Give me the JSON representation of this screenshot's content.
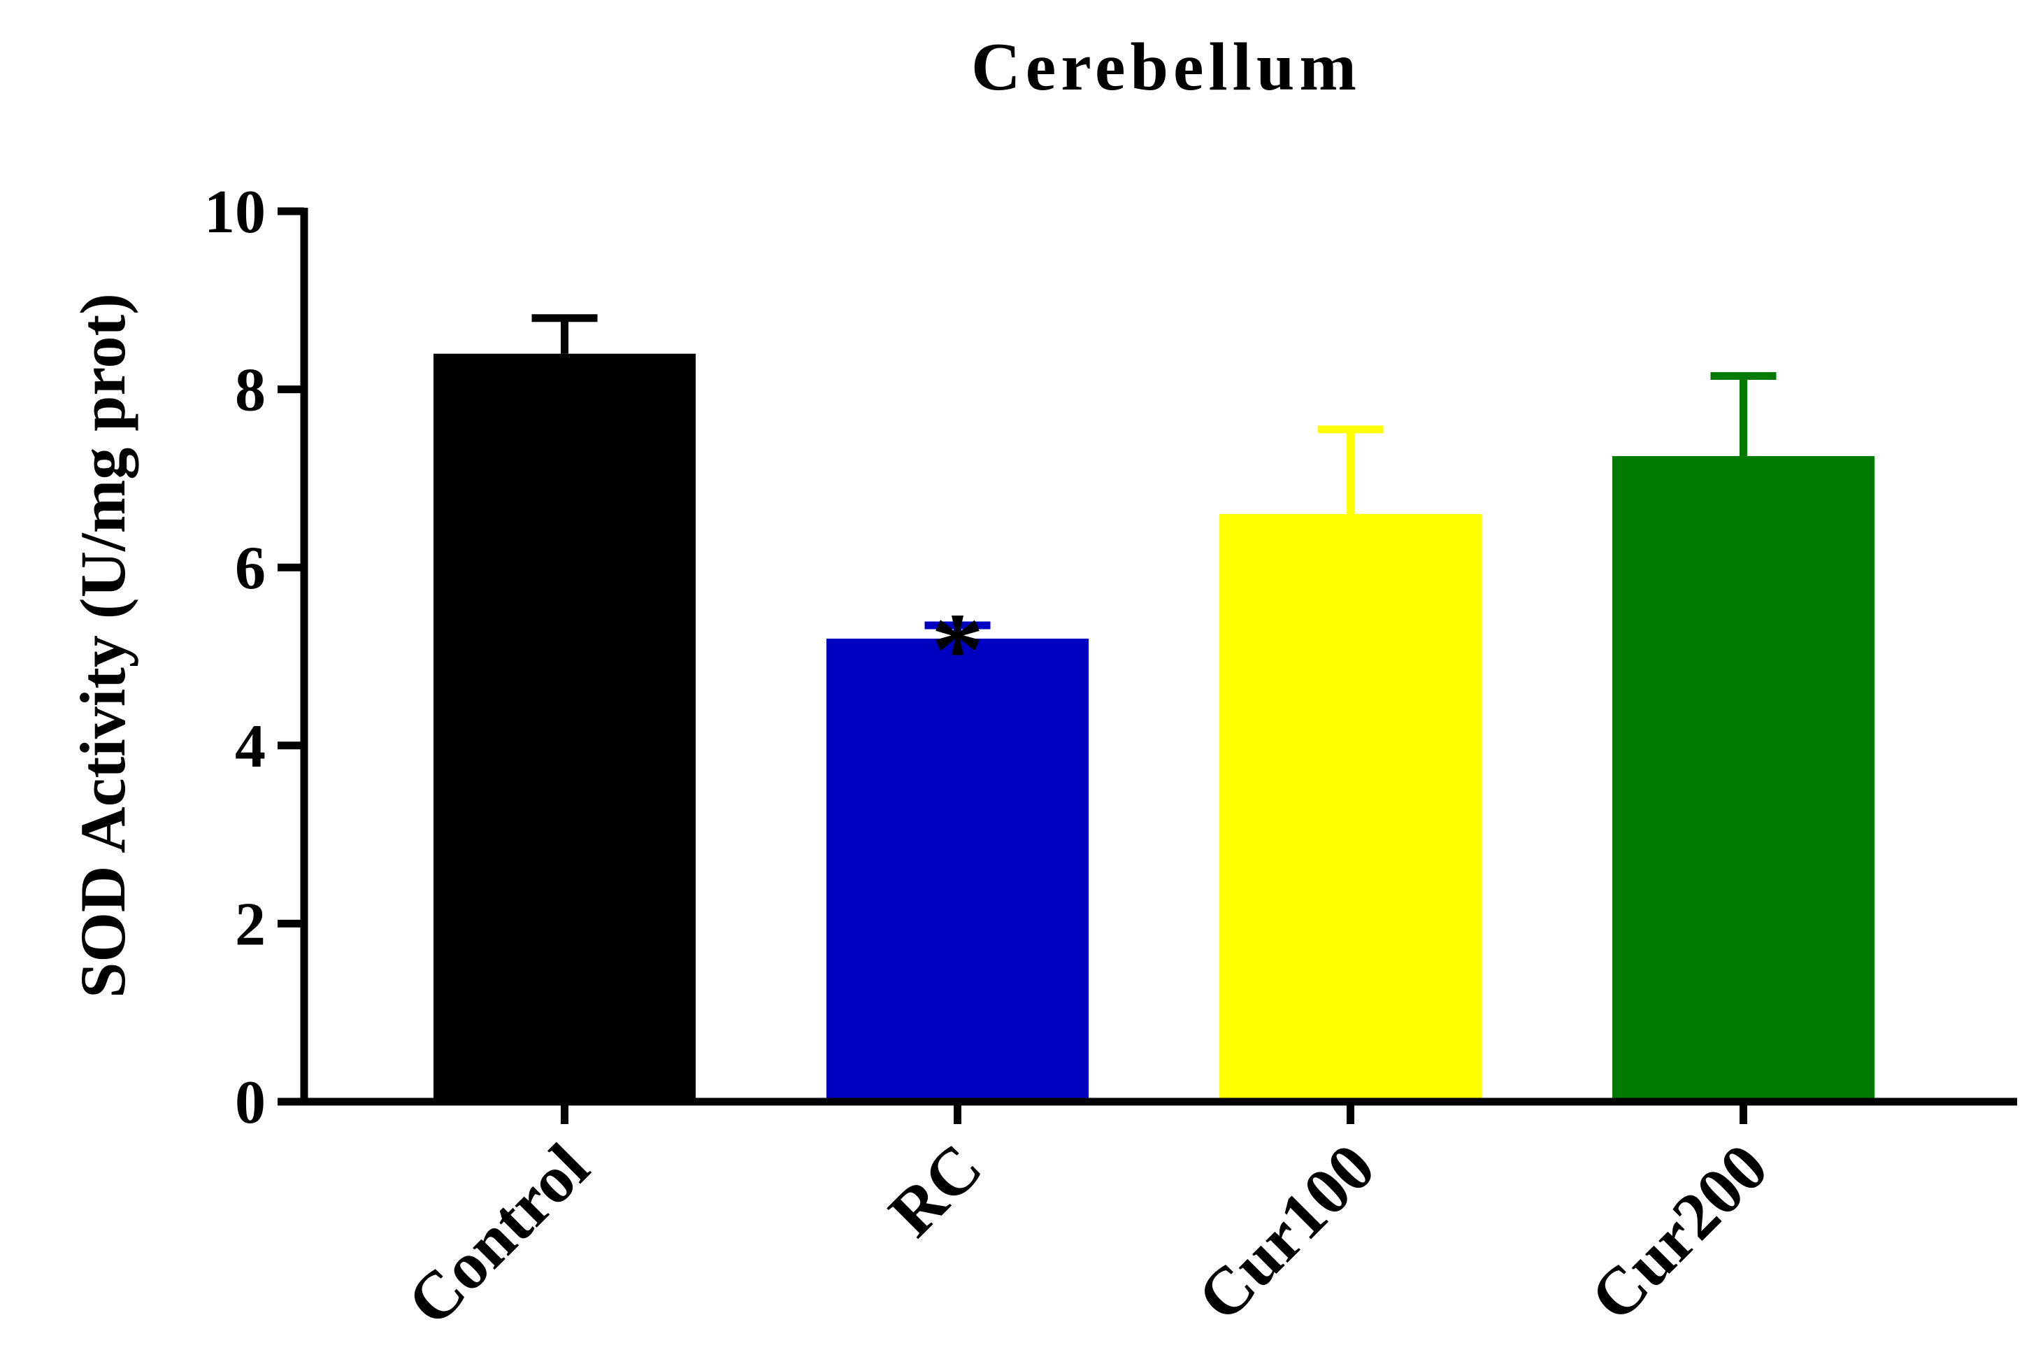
{
  "chart_data": {
    "type": "bar",
    "title": "Cerebellum",
    "ylabel": "SOD Activity (U/mg prot)",
    "xlabel": "",
    "categories": [
      "Control",
      "RC",
      "Cur100",
      "Cur200"
    ],
    "values": [
      8.4,
      5.2,
      6.6,
      7.25
    ],
    "error": [
      0.4,
      0.15,
      0.95,
      0.9
    ],
    "colors": [
      "#000000",
      "#0000c0",
      "#ffff00",
      "#007a00"
    ],
    "ylim": [
      0,
      10
    ],
    "yticks": [
      0,
      2,
      4,
      6,
      8,
      10
    ],
    "annotations": [
      {
        "category": "RC",
        "text": "*"
      }
    ],
    "grid": false,
    "legend": "none"
  }
}
